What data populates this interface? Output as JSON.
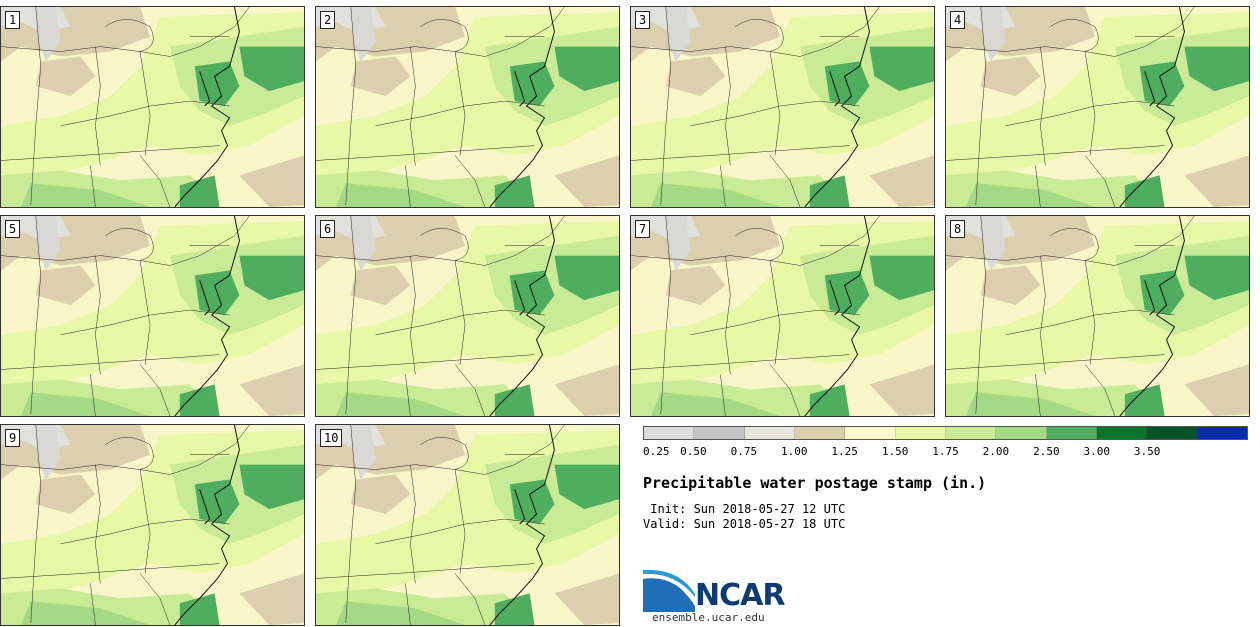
{
  "panels": [
    {
      "label": "1"
    },
    {
      "label": "2"
    },
    {
      "label": "3"
    },
    {
      "label": "4"
    },
    {
      "label": "5"
    },
    {
      "label": "6"
    },
    {
      "label": "7"
    },
    {
      "label": "8"
    },
    {
      "label": "9"
    },
    {
      "label": "10"
    }
  ],
  "colorbar": {
    "colors": [
      "#dcdcdc",
      "#c4c4c4",
      "#e6e6dc",
      "#dccfae",
      "#fbf9cc",
      "#e8f8a6",
      "#c9eb95",
      "#a4d985",
      "#4fae5e",
      "#05752e",
      "#06532a",
      "#0a2bb0"
    ],
    "ticks": [
      "0.25",
      "0.50",
      "0.75",
      "1.00",
      "1.25",
      "1.50",
      "1.75",
      "2.00",
      "2.50",
      "3.00",
      "3.50"
    ]
  },
  "title": "Precipitable water postage stamp (in.)",
  "init": " Init: Sun 2018-05-27 12 UTC",
  "valid": "Valid: Sun 2018-05-27 18 UTC",
  "logo": {
    "name": "NCAR",
    "url": "ensemble.ucar.edu"
  }
}
